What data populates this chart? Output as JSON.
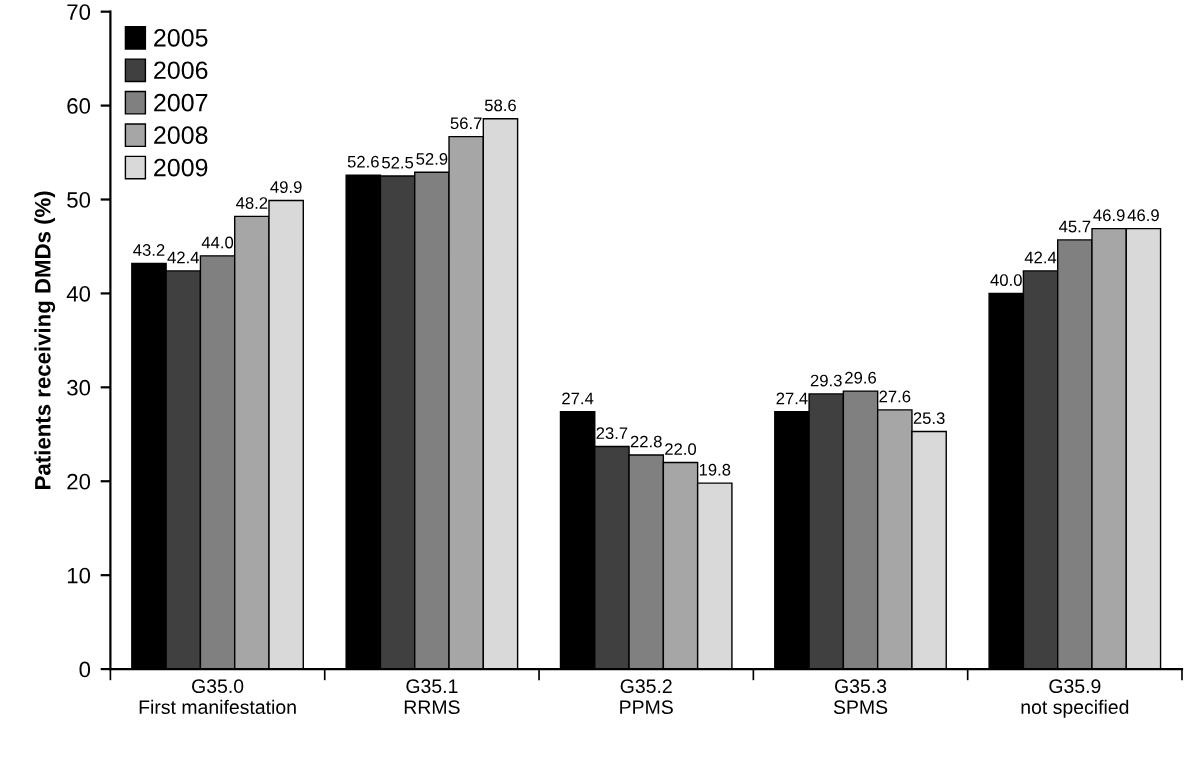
{
  "chart_data": {
    "type": "bar",
    "ylabel": "Patients receiving DMDs (%)",
    "categories": [
      "G35.0\nFirst manifestation",
      "G35.1\nRRMS",
      "G35.2\nPPMS",
      "G35.3\nSPMS",
      "G35.9\nnot specified"
    ],
    "series": [
      {
        "name": "2005",
        "color": "#000000",
        "values": [
          43.2,
          52.6,
          27.4,
          27.4,
          40.0
        ],
        "value_labels": [
          "43.2",
          "52.6",
          "27.4",
          "27.4",
          "40.0"
        ]
      },
      {
        "name": "2006",
        "color": "#404040",
        "values": [
          42.4,
          52.5,
          23.7,
          29.3,
          42.4
        ],
        "value_labels": [
          "42.4",
          "52.5",
          "23.7",
          "29.3",
          "42.4"
        ]
      },
      {
        "name": "2007",
        "color": "#808080",
        "values": [
          44.0,
          52.9,
          22.8,
          29.6,
          45.7
        ],
        "value_labels": [
          "44.0",
          "52.9",
          "22.8",
          "29.6",
          "45.7"
        ]
      },
      {
        "name": "2008",
        "color": "#a6a6a6",
        "values": [
          48.2,
          56.7,
          22.0,
          27.6,
          46.9
        ],
        "value_labels": [
          "48.2",
          "56.7",
          "22.0",
          "27.6",
          "46.9"
        ]
      },
      {
        "name": "2009",
        "color": "#d9d9d9",
        "values": [
          49.9,
          58.6,
          19.8,
          25.3,
          46.9
        ],
        "value_labels": [
          "49.9",
          "58.6",
          "19.8",
          "25.3",
          "46.9"
        ]
      }
    ],
    "ylim": [
      0,
      70
    ],
    "yticks": [
      0,
      10,
      20,
      30,
      40,
      50,
      60,
      70
    ],
    "grid": false,
    "legend": "top left"
  }
}
